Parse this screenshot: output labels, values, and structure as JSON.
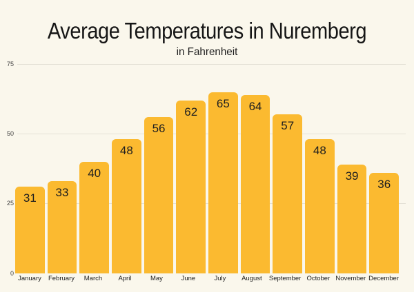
{
  "chart_data": {
    "type": "bar",
    "title": "Average Temperatures in Nuremberg",
    "subtitle": "in Fahrenheit",
    "categories": [
      "January",
      "February",
      "March",
      "April",
      "May",
      "June",
      "July",
      "August",
      "September",
      "October",
      "November",
      "December"
    ],
    "values": [
      31,
      33,
      40,
      48,
      56,
      62,
      65,
      64,
      57,
      48,
      39,
      36
    ],
    "xlabel": "",
    "ylabel": "",
    "ylim": [
      0,
      75
    ],
    "yticks": [
      75,
      50,
      25,
      0
    ],
    "grid": true,
    "legend": "none",
    "value_labels_position": "inside-top",
    "colors": {
      "bar": "#FBBA30",
      "background": "#FAF7EC",
      "gridline": "#E4E1D6",
      "tick_text": "#3F3F3F",
      "title_text": "#161616",
      "value_text": "#1F1F1F"
    }
  }
}
